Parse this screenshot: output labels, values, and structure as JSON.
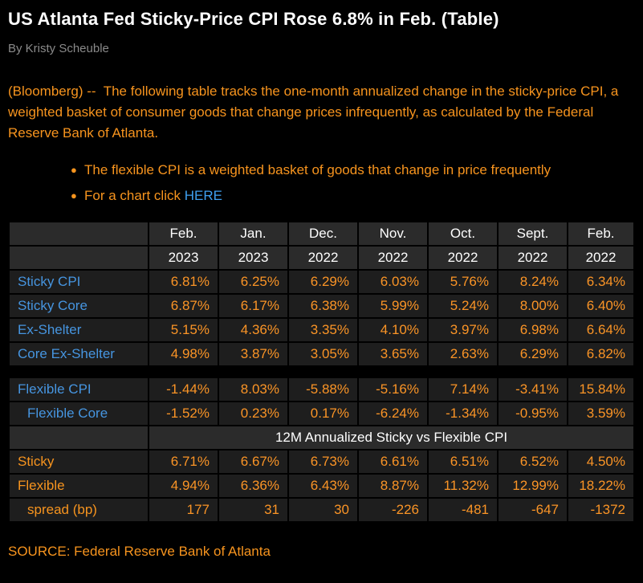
{
  "article": {
    "title": "US Atlanta Fed Sticky-Price CPI Rose 6.8% in Feb. (Table)",
    "byline": "By Kristy Scheuble",
    "lead": "(Bloomberg) --  The following table tracks the one-month annualized change in the sticky-price CPI, a weighted basket of consumer goods that change prices infrequently, as calculated by the Federal Reserve Bank of Atlanta.",
    "bullets": [
      {
        "text": "The flexible CPI is a weighted basket of goods that change in price frequently",
        "link": ""
      },
      {
        "text": "For a chart click ",
        "link": "HERE"
      }
    ],
    "source": "SOURCE: Federal Reserve Bank of Atlanta"
  },
  "table": {
    "month_headers": [
      "",
      "Feb.",
      "Jan.",
      "Dec.",
      "Nov.",
      "Oct.",
      "Sept.",
      "Feb."
    ],
    "year_headers": [
      "",
      "2023",
      "2023",
      "2022",
      "2022",
      "2022",
      "2022",
      "2022"
    ],
    "rows": [
      {
        "type": "data",
        "label": "Sticky CPI",
        "label_style": "blue",
        "indent": false,
        "values": [
          "6.81%",
          "6.25%",
          "6.29%",
          "6.03%",
          "5.76%",
          "8.24%",
          "6.34%"
        ]
      },
      {
        "type": "data",
        "label": "Sticky Core",
        "label_style": "blue",
        "indent": false,
        "values": [
          "6.87%",
          "6.17%",
          "6.38%",
          "5.99%",
          "5.24%",
          "8.00%",
          "6.40%"
        ]
      },
      {
        "type": "data",
        "label": "Ex-Shelter",
        "label_style": "blue",
        "indent": false,
        "values": [
          "5.15%",
          "4.36%",
          "3.35%",
          "4.10%",
          "3.97%",
          "6.98%",
          "6.64%"
        ]
      },
      {
        "type": "data",
        "label": "Core Ex-Shelter",
        "label_style": "blue",
        "indent": false,
        "values": [
          "4.98%",
          "3.87%",
          "3.05%",
          "3.65%",
          "2.63%",
          "6.29%",
          "6.82%"
        ]
      },
      {
        "type": "gap"
      },
      {
        "type": "data",
        "label": "Flexible CPI",
        "label_style": "blue",
        "indent": false,
        "values": [
          "-1.44%",
          "8.03%",
          "-5.88%",
          "-5.16%",
          "7.14%",
          "-3.41%",
          "15.84%"
        ]
      },
      {
        "type": "data",
        "label": "Flexible Core",
        "label_style": "blue",
        "indent": true,
        "values": [
          "-1.52%",
          "0.23%",
          "0.17%",
          "-6.24%",
          "-1.34%",
          "-0.95%",
          "3.59%"
        ]
      },
      {
        "type": "banner",
        "label": "12M Annualized Sticky vs Flexible CPI"
      },
      {
        "type": "data",
        "label": "Sticky",
        "label_style": "orange",
        "indent": false,
        "values": [
          "6.71%",
          "6.67%",
          "6.73%",
          "6.61%",
          "6.51%",
          "6.52%",
          "4.50%"
        ]
      },
      {
        "type": "data",
        "label": "Flexible",
        "label_style": "orange",
        "indent": false,
        "values": [
          "4.94%",
          "6.36%",
          "6.43%",
          "8.87%",
          "11.32%",
          "12.99%",
          "18.22%"
        ]
      },
      {
        "type": "data",
        "label": "spread (bp)",
        "label_style": "orange",
        "indent": true,
        "values": [
          "177",
          "31",
          "30",
          "-226",
          "-481",
          "-647",
          "-1372"
        ]
      }
    ]
  },
  "colors": {
    "background": "#000000",
    "title_white": "#ffffff",
    "byline_gray": "#8a8a8a",
    "body_orange": "#f7941e",
    "value_orange": "#fa9426",
    "label_blue": "#4695e0",
    "link_blue": "#3fa0f0",
    "header_bg": "#2b2b2b",
    "cell_bg": "#1e1e1e",
    "grid_black": "#000000"
  }
}
